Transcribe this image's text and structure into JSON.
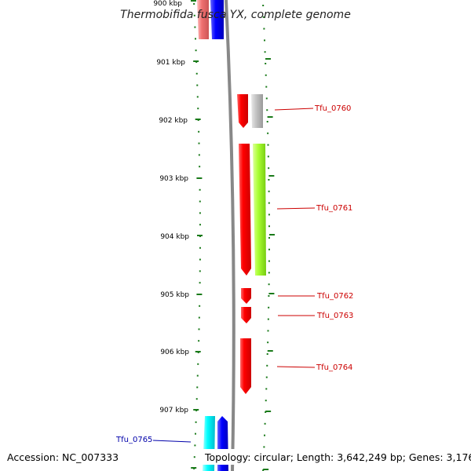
{
  "title": "Thermobifida fusca YX, complete genome",
  "footer": {
    "accession": "Accession: NC_007333",
    "topology": "Topology: circular; Length: 3,642,249 bp; Genes: 3,176"
  },
  "colors": {
    "tick": "#1a7a1a",
    "backbone": "#888888",
    "forward_red": "#ff0000",
    "label_red": "#cc0000",
    "label_blue": "#0000aa"
  },
  "kbp_labels": [
    "900 kbp",
    "901 kbp",
    "902 kbp",
    "903 kbp",
    "904 kbp",
    "905 kbp",
    "906 kbp",
    "907 kbp"
  ],
  "genes": [
    {
      "label": "Tfu_0760",
      "color": "#cc0000",
      "name": "gene-label-tfu-0760"
    },
    {
      "label": "Tfu_0761",
      "color": "#cc0000",
      "name": "gene-label-tfu-0761"
    },
    {
      "label": "Tfu_0762",
      "color": "#cc0000",
      "name": "gene-label-tfu-0762"
    },
    {
      "label": "Tfu_0763",
      "color": "#cc0000",
      "name": "gene-label-tfu-0763"
    },
    {
      "label": "Tfu_0764",
      "color": "#cc0000",
      "name": "gene-label-tfu-0764"
    },
    {
      "label": "Tfu_0765",
      "color": "#0000aa",
      "name": "gene-label-tfu-0765"
    }
  ]
}
